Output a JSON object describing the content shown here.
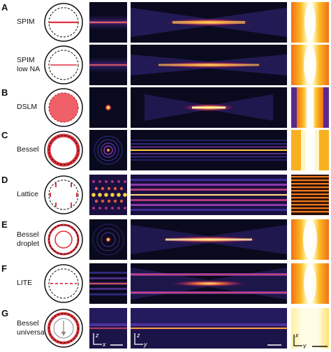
{
  "rows": [
    {
      "letter": "A",
      "name_lines": [
        "SPIM"
      ],
      "pupil": "line"
    },
    {
      "letter": "",
      "name_lines": [
        "SPIM",
        "low NA"
      ],
      "pupil": "line"
    },
    {
      "letter": "B",
      "name_lines": [
        "DSLM"
      ],
      "pupil": "filled"
    },
    {
      "letter": "C",
      "name_lines": [
        "Bessel"
      ],
      "pupil": "ring"
    },
    {
      "letter": "D",
      "name_lines": [
        "Lattice"
      ],
      "pupil": "lattice"
    },
    {
      "letter": "E",
      "name_lines": [
        "Bessel",
        "droplet"
      ],
      "pupil": "droplet"
    },
    {
      "letter": "F",
      "name_lines": [
        "LITE"
      ],
      "pupil": "dashed-line"
    },
    {
      "letter": "G",
      "name_lines": [
        "Bessel",
        "universal"
      ],
      "pupil": "universal"
    }
  ],
  "axes": {
    "xz": {
      "vertical": "z",
      "horizontal": "x"
    },
    "yz": {
      "vertical": "z",
      "horizontal": "y"
    },
    "xy": {
      "vertical": "x",
      "horizontal": "y"
    }
  },
  "colors": {
    "ring_red": "#e0303a",
    "fill_red": "#f06068",
    "background_dark": "#0a0a1e"
  }
}
